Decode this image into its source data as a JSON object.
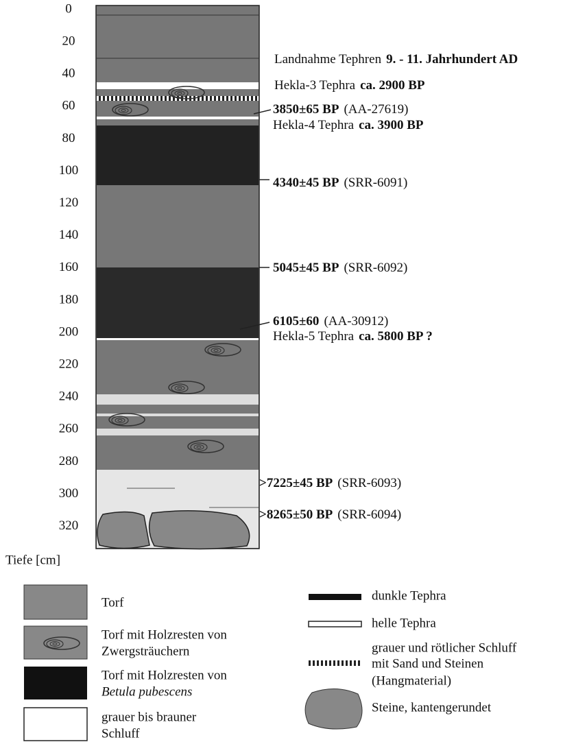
{
  "depth_axis": {
    "ticks": [
      0,
      20,
      40,
      60,
      80,
      100,
      120,
      140,
      160,
      180,
      200,
      220,
      240,
      260,
      280,
      300,
      320
    ],
    "label": "Tiefe [cm]"
  },
  "annotations": [
    {
      "parts": [
        {
          "text": "Landnahme Tephren",
          "style": "normal"
        },
        {
          "text": "9. - 11. Jahrhundert AD",
          "style": "bold"
        }
      ]
    },
    {
      "parts": [
        {
          "text": "Hekla-3 Tephra",
          "style": "normal"
        },
        {
          "text": "ca. 2900 BP",
          "style": "bold"
        }
      ]
    },
    {
      "parts": [
        {
          "text": "3850±65 BP",
          "style": "bold"
        },
        {
          "text": "(AA-27619)",
          "style": "normal"
        }
      ]
    },
    {
      "parts": [
        {
          "text": "Hekla-4 Tephra",
          "style": "normal"
        },
        {
          "text": "ca. 3900 BP",
          "style": "bold"
        }
      ]
    },
    {
      "parts": [
        {
          "text": "4340±45 BP",
          "style": "bold"
        },
        {
          "text": "(SRR-6091)",
          "style": "normal"
        }
      ]
    },
    {
      "parts": [
        {
          "text": "5045±45 BP",
          "style": "bold"
        },
        {
          "text": "(SRR-6092)",
          "style": "normal"
        }
      ]
    },
    {
      "parts": [
        {
          "text": "6105±60",
          "style": "bold"
        },
        {
          "text": "(AA-30912)",
          "style": "normal"
        }
      ]
    },
    {
      "parts": [
        {
          "text": "Hekla-5 Tephra",
          "style": "normal"
        },
        {
          "text": "ca. 5800 BP ?",
          "style": "bold"
        }
      ]
    },
    {
      "parts": [
        {
          "text": ">7225±45 BP",
          "style": "bold"
        },
        {
          "text": "(SRR-6093)",
          "style": "normal"
        }
      ]
    },
    {
      "parts": [
        {
          "text": ">8265±50 BP",
          "style": "bold"
        },
        {
          "text": "(SRR-6094)",
          "style": "normal"
        }
      ]
    }
  ],
  "legend": {
    "left": [
      {
        "lines": [
          {
            "text": "Torf",
            "style": "normal"
          }
        ]
      },
      {
        "lines": [
          {
            "text": "Torf mit Holzresten von",
            "style": "normal"
          },
          {
            "text": "Zwergsträuchern",
            "style": "normal"
          }
        ]
      },
      {
        "lines": [
          {
            "text": "Torf mit Holzresten von",
            "style": "normal"
          },
          {
            "text": "Betula pubescens",
            "style": "italic"
          }
        ]
      },
      {
        "lines": [
          {
            "text": "grauer bis brauner",
            "style": "normal"
          },
          {
            "text": "Schluff",
            "style": "normal"
          }
        ]
      }
    ],
    "right": [
      {
        "lines": [
          {
            "text": "dunkle Tephra",
            "style": "normal"
          }
        ]
      },
      {
        "lines": [
          {
            "text": "helle Tephra",
            "style": "normal"
          }
        ]
      },
      {
        "lines": [
          {
            "text": "grauer und rötlicher Schluff",
            "style": "normal"
          },
          {
            "text": "mit Sand und Steinen",
            "style": "normal"
          },
          {
            "text": "(Hangmaterial)",
            "style": "normal"
          }
        ]
      },
      {
        "lines": [
          {
            "text": "Steine, kantengerundet",
            "style": "normal"
          }
        ]
      }
    ]
  }
}
